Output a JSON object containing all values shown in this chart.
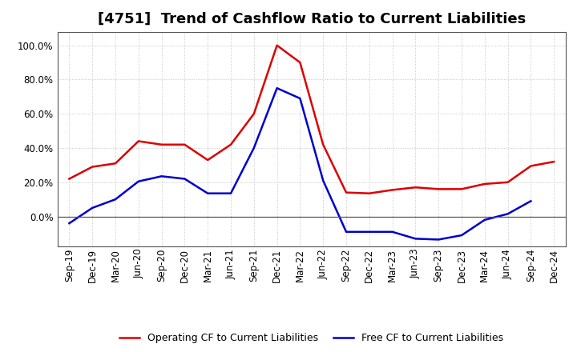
{
  "title": "[4751]  Trend of Cashflow Ratio to Current Liabilities",
  "x_labels": [
    "Sep-19",
    "Dec-19",
    "Mar-20",
    "Jun-20",
    "Sep-20",
    "Dec-20",
    "Mar-21",
    "Jun-21",
    "Sep-21",
    "Dec-21",
    "Mar-22",
    "Jun-22",
    "Sep-22",
    "Dec-22",
    "Mar-23",
    "Jun-23",
    "Sep-23",
    "Dec-23",
    "Mar-24",
    "Jun-24",
    "Sep-24",
    "Dec-24"
  ],
  "operating_cf": [
    0.22,
    0.29,
    0.31,
    0.44,
    0.42,
    0.42,
    0.33,
    0.42,
    0.6,
    1.0,
    0.9,
    0.42,
    0.14,
    0.135,
    0.155,
    0.17,
    0.16,
    0.16,
    0.19,
    0.2,
    0.295,
    0.32
  ],
  "free_cf": [
    -0.04,
    0.05,
    0.1,
    0.205,
    0.235,
    0.22,
    0.135,
    0.135,
    0.4,
    0.75,
    0.69,
    0.21,
    -0.09,
    -0.09,
    -0.09,
    -0.13,
    -0.135,
    -0.11,
    -0.02,
    0.015,
    0.09,
    null
  ],
  "operating_color": "#dd0000",
  "free_color": "#0000cc",
  "background_color": "#ffffff",
  "grid_color": "#bbbbbb",
  "ylim": [
    -0.175,
    1.08
  ],
  "yticks": [
    0.0,
    0.2,
    0.4,
    0.6,
    0.8,
    1.0
  ],
  "legend_op": "Operating CF to Current Liabilities",
  "legend_free": "Free CF to Current Liabilities",
  "title_fontsize": 13,
  "axis_fontsize": 8.5,
  "legend_fontsize": 9
}
